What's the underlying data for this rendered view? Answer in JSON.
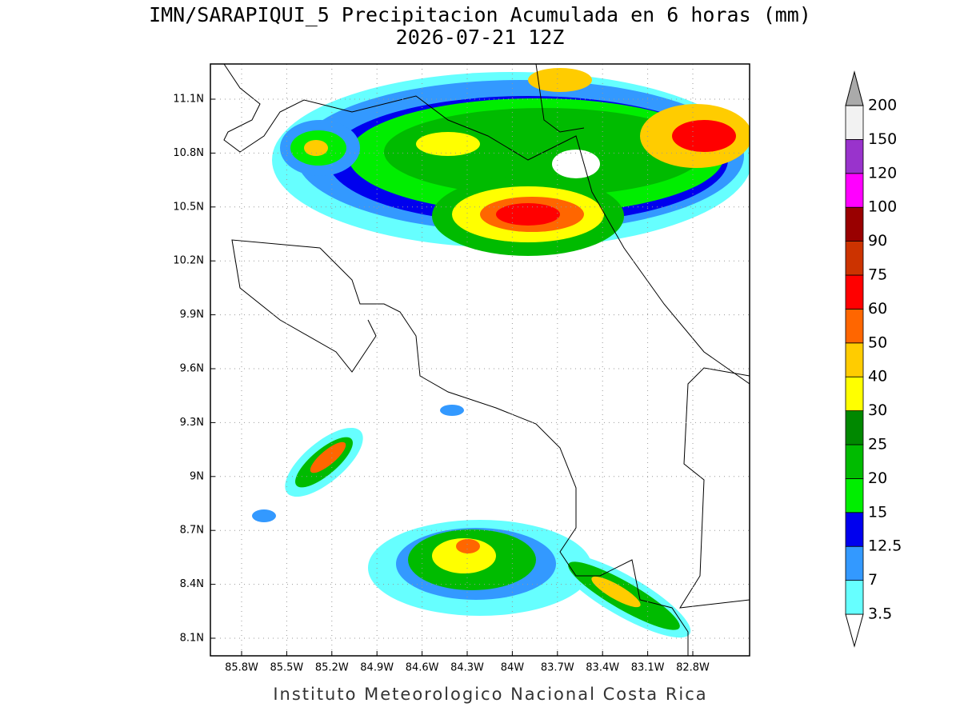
{
  "title": "IMN/SARAPIQUI_5 Precipitacion Acumulada en 6 horas (mm)",
  "subtitle": "2026-07-21 12Z",
  "lat_labels": [
    "11.1N",
    "10.8N",
    "10.5N",
    "10.2N",
    "9.9N",
    "9.6N",
    "9.3N",
    "9N",
    "8.7N",
    "8.4N",
    "8.1N"
  ],
  "lon_labels": [
    "85.8W",
    "85.5W",
    "85.2W",
    "84.9W",
    "84.6W",
    "84.3W",
    "84W",
    "83.7W",
    "83.4W",
    "83.1W",
    "82.8W"
  ],
  "colorbar": {
    "levels": [
      3.5,
      7,
      12.5,
      15,
      20,
      25,
      30,
      40,
      50,
      60,
      75,
      90,
      100,
      120,
      150,
      200
    ],
    "colors": [
      "#66ffff",
      "#3399ff",
      "#0000ee",
      "#00ee00",
      "#00bb00",
      "#008800",
      "#ffff00",
      "#ffcc00",
      "#ff6600",
      "#ff0000",
      "#cc3300",
      "#990000",
      "#ff00ff",
      "#9933cc",
      "#f2f2f2",
      "#aaaaaa"
    ]
  },
  "footer": "Instituto Meteorologico Nacional Costa Rica"
}
